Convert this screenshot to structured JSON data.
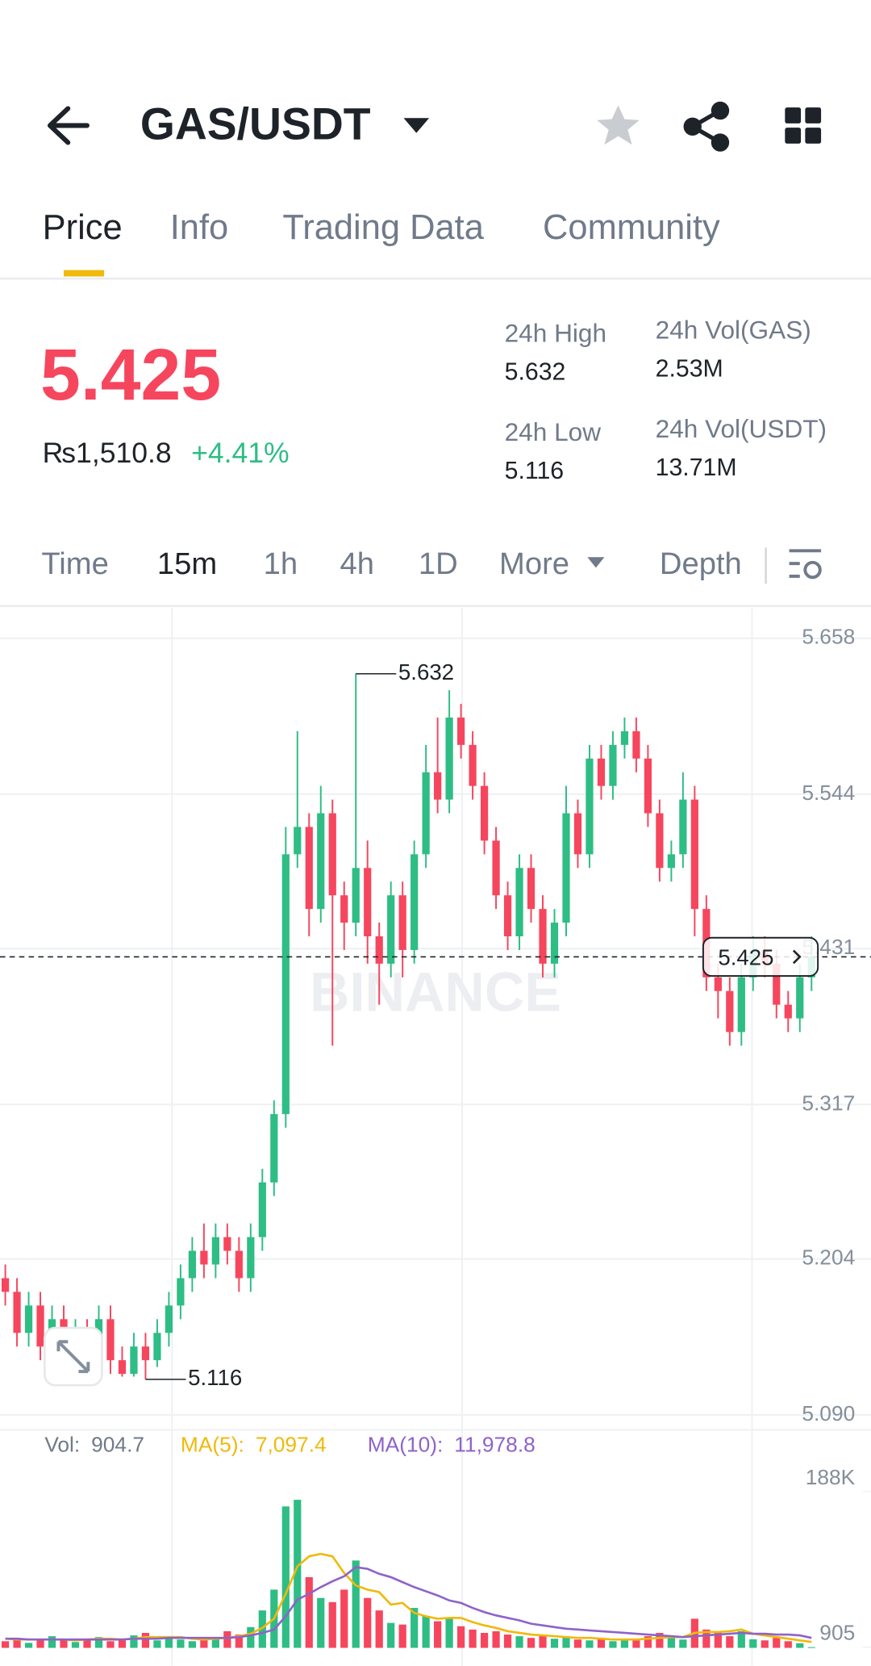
{
  "header": {
    "title": "GAS/USDT"
  },
  "tabs": [
    "Price",
    "Info",
    "Trading Data",
    "Community"
  ],
  "ticker": {
    "price": "5.425",
    "fiat": "₨1,510.8",
    "change": "+4.41%"
  },
  "stats": [
    {
      "label": "24h High",
      "value": "5.632"
    },
    {
      "label": "24h Low",
      "value": "5.116"
    },
    {
      "label": "24h Vol(GAS)",
      "value": "2.53M"
    },
    {
      "label": "24h Vol(USDT)",
      "value": "13.71M"
    }
  ],
  "intervals": [
    "Time",
    "15m",
    "1h",
    "4h",
    "1D",
    "More",
    "Depth"
  ],
  "chart_data": {
    "type": "candlestick",
    "watermark": "BINANCE",
    "up_color": "#2ebd85",
    "down_color": "#f6465d",
    "grid": true,
    "ylim": [
      5.079,
      5.68
    ],
    "yticks": [
      5.658,
      5.544,
      5.431,
      5.317,
      5.204,
      {
        "value": 5.09,
        "label": "5.090"
      }
    ],
    "ohlc": [
      [
        5.19,
        5.2,
        5.17,
        5.18
      ],
      [
        5.18,
        5.19,
        5.14,
        5.15
      ],
      [
        5.15,
        5.18,
        5.14,
        5.17
      ],
      [
        5.17,
        5.18,
        5.13,
        5.14
      ],
      [
        5.14,
        5.17,
        5.13,
        5.16
      ],
      [
        5.16,
        5.17,
        5.12,
        5.13
      ],
      [
        5.13,
        5.16,
        5.125,
        5.15
      ],
      [
        5.15,
        5.16,
        5.13,
        5.14
      ],
      [
        5.14,
        5.17,
        5.13,
        5.16
      ],
      [
        5.16,
        5.17,
        5.12,
        5.13
      ],
      [
        5.13,
        5.14,
        5.118,
        5.12
      ],
      [
        5.12,
        5.15,
        5.118,
        5.14
      ],
      [
        5.14,
        5.15,
        5.116,
        5.13
      ],
      [
        5.13,
        5.16,
        5.125,
        5.15
      ],
      [
        5.15,
        5.18,
        5.14,
        5.17
      ],
      [
        5.17,
        5.2,
        5.16,
        5.19
      ],
      [
        5.19,
        5.22,
        5.18,
        5.21
      ],
      [
        5.21,
        5.23,
        5.19,
        5.2
      ],
      [
        5.2,
        5.23,
        5.19,
        5.22
      ],
      [
        5.22,
        5.23,
        5.2,
        5.21
      ],
      [
        5.21,
        5.22,
        5.18,
        5.19
      ],
      [
        5.19,
        5.23,
        5.18,
        5.22
      ],
      [
        5.22,
        5.27,
        5.21,
        5.26
      ],
      [
        5.26,
        5.32,
        5.25,
        5.31
      ],
      [
        5.31,
        5.52,
        5.3,
        5.5
      ],
      [
        5.5,
        5.59,
        5.49,
        5.52
      ],
      [
        5.52,
        5.53,
        5.44,
        5.46
      ],
      [
        5.46,
        5.55,
        5.45,
        5.53
      ],
      [
        5.53,
        5.54,
        5.36,
        5.47
      ],
      [
        5.47,
        5.48,
        5.43,
        5.45
      ],
      [
        5.45,
        5.632,
        5.44,
        5.49
      ],
      [
        5.49,
        5.51,
        5.42,
        5.44
      ],
      [
        5.44,
        5.45,
        5.39,
        5.42
      ],
      [
        5.42,
        5.48,
        5.41,
        5.47
      ],
      [
        5.47,
        5.48,
        5.41,
        5.43
      ],
      [
        5.43,
        5.51,
        5.42,
        5.5
      ],
      [
        5.5,
        5.58,
        5.49,
        5.56
      ],
      [
        5.56,
        5.6,
        5.53,
        5.54
      ],
      [
        5.54,
        5.62,
        5.53,
        5.6
      ],
      [
        5.6,
        5.61,
        5.57,
        5.58
      ],
      [
        5.58,
        5.59,
        5.54,
        5.55
      ],
      [
        5.55,
        5.56,
        5.5,
        5.51
      ],
      [
        5.51,
        5.52,
        5.46,
        5.47
      ],
      [
        5.47,
        5.48,
        5.43,
        5.44
      ],
      [
        5.44,
        5.5,
        5.43,
        5.49
      ],
      [
        5.49,
        5.5,
        5.45,
        5.46
      ],
      [
        5.46,
        5.47,
        5.41,
        5.42
      ],
      [
        5.42,
        5.46,
        5.41,
        5.45
      ],
      [
        5.45,
        5.55,
        5.44,
        5.53
      ],
      [
        5.53,
        5.54,
        5.49,
        5.5
      ],
      [
        5.5,
        5.58,
        5.49,
        5.57
      ],
      [
        5.57,
        5.58,
        5.54,
        5.55
      ],
      [
        5.55,
        5.59,
        5.54,
        5.58
      ],
      [
        5.58,
        5.6,
        5.57,
        5.59
      ],
      [
        5.59,
        5.6,
        5.56,
        5.57
      ],
      [
        5.57,
        5.58,
        5.52,
        5.53
      ],
      [
        5.53,
        5.54,
        5.48,
        5.49
      ],
      [
        5.49,
        5.51,
        5.48,
        5.5
      ],
      [
        5.5,
        5.56,
        5.49,
        5.54
      ],
      [
        5.54,
        5.55,
        5.44,
        5.46
      ],
      [
        5.46,
        5.47,
        5.4,
        5.41
      ],
      [
        5.41,
        5.42,
        5.38,
        5.4
      ],
      [
        5.4,
        5.41,
        5.36,
        5.37
      ],
      [
        5.37,
        5.42,
        5.36,
        5.41
      ],
      [
        5.41,
        5.44,
        5.4,
        5.43
      ],
      [
        5.43,
        5.44,
        5.41,
        5.42
      ],
      [
        5.42,
        5.43,
        5.38,
        5.39
      ],
      [
        5.39,
        5.4,
        5.37,
        5.38
      ],
      [
        5.38,
        5.42,
        5.37,
        5.41
      ],
      [
        5.41,
        5.44,
        5.4,
        5.425
      ]
    ],
    "volume": {
      "name": "Vol:",
      "ylim": [
        0,
        230000
      ],
      "yticks": [
        {
          "value": 188000,
          "label": "188K"
        },
        905
      ],
      "values": [
        8000,
        12000,
        6000,
        10000,
        14000,
        9000,
        7000,
        11000,
        13000,
        8000,
        10000,
        15000,
        18000,
        9000,
        12000,
        10000,
        8000,
        11000,
        13000,
        20000,
        16000,
        25000,
        45000,
        70000,
        170000,
        178000,
        85000,
        60000,
        55000,
        70000,
        105000,
        60000,
        45000,
        30000,
        28000,
        48000,
        38000,
        32000,
        36000,
        26000,
        22000,
        18000,
        20000,
        16000,
        14000,
        12000,
        15000,
        11000,
        13000,
        10000,
        9000,
        12000,
        8000,
        10000,
        9000,
        14000,
        18000,
        12000,
        10000,
        35000,
        22000,
        18000,
        14000,
        20000,
        10301,
        9000,
        12000,
        8000,
        5582.3,
        904.7
      ]
    },
    "ma_series": [
      {
        "name": "MA(5):",
        "color": "#f0b90b",
        "last_label": "7,097.4",
        "values": [
          11000,
          10000,
          10000,
          10000,
          10000,
          10000,
          9000,
          10000,
          11000,
          11000,
          10000,
          11000,
          13000,
          13000,
          13000,
          13000,
          11000,
          10000,
          11000,
          12000,
          14000,
          17000,
          24000,
          35000,
          65000,
          98000,
          110000,
          113000,
          110000,
          90000,
          75000,
          70000,
          67000,
          52000,
          54000,
          42000,
          38000,
          35000,
          36000,
          36000,
          31000,
          27000,
          24000,
          20000,
          18000,
          16000,
          15000,
          14000,
          13000,
          12000,
          12000,
          11000,
          10000,
          10000,
          10000,
          11000,
          12000,
          13000,
          13000,
          18000,
          19000,
          19000,
          20000,
          22000,
          17000,
          15000,
          13000,
          11000,
          9000,
          7097.4
        ]
      },
      {
        "name": "MA(10):",
        "color": "#8e63c9",
        "last_label": "11,978.8",
        "values": [
          11000,
          11000,
          10000,
          10000,
          10000,
          10000,
          10000,
          10000,
          10000,
          10000,
          10000,
          11000,
          11000,
          11000,
          12000,
          12000,
          12000,
          12000,
          12000,
          12000,
          13000,
          15000,
          18000,
          22000,
          38000,
          58000,
          65000,
          73000,
          80000,
          86000,
          97000,
          95000,
          89000,
          85000,
          79000,
          73000,
          68000,
          63000,
          57000,
          54000,
          48000,
          43000,
          39000,
          36000,
          33000,
          29000,
          27000,
          25000,
          23000,
          22000,
          21000,
          20000,
          19000,
          18000,
          17000,
          16000,
          15000,
          14000,
          13000,
          14000,
          15000,
          16000,
          17000,
          18000,
          17000,
          17000,
          16000,
          16000,
          15000,
          11978.8
        ]
      }
    ]
  }
}
